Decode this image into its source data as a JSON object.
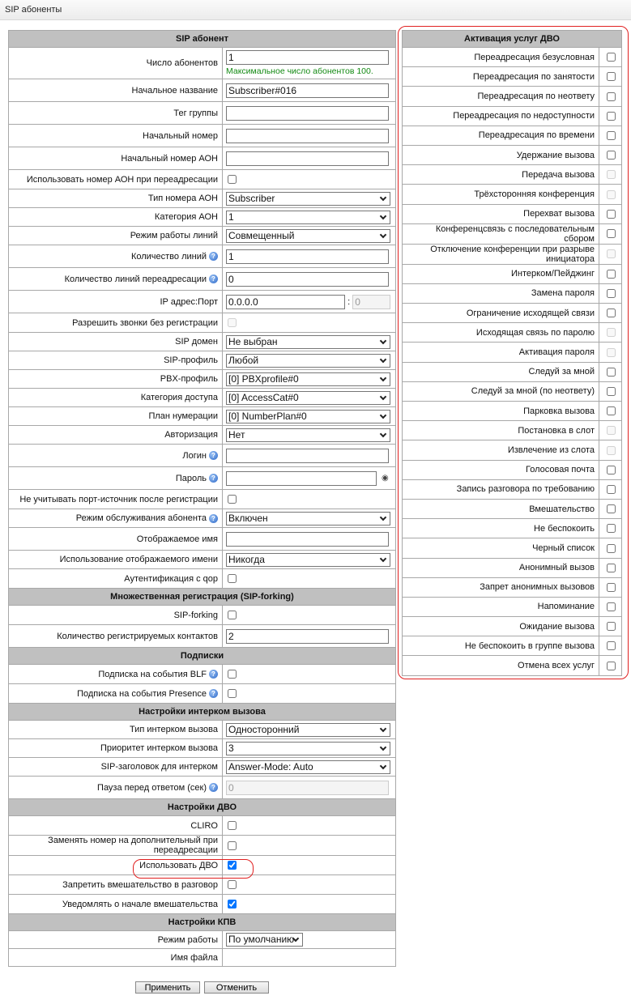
{
  "page_title": "SIP абоненты",
  "left": {
    "rows": [
      {
        "type": "header",
        "label": "SIP абонент"
      },
      {
        "type": "textnote",
        "label": "Число абонентов",
        "value": "1",
        "note": "Максимальное число абонентов 100.",
        "h": 39
      },
      {
        "type": "text",
        "label": "Начальное название",
        "value": "Subscriber#016"
      },
      {
        "type": "text",
        "label": "Тег группы",
        "value": ""
      },
      {
        "type": "text",
        "label": "Начальный номер",
        "value": ""
      },
      {
        "type": "text",
        "label": "Начальный номер АОН",
        "value": ""
      },
      {
        "type": "checkbox",
        "label": "Использовать номер АОН при переадресации",
        "checked": false
      },
      {
        "type": "select",
        "label": "Тип номера АОН",
        "value": "Subscriber"
      },
      {
        "type": "select",
        "label": "Категория АОН",
        "value": "1"
      },
      {
        "type": "select",
        "label": "Режим работы линий",
        "value": "Совмещенный"
      },
      {
        "type": "text",
        "label": "Количество линий",
        "value": "1",
        "help": true
      },
      {
        "type": "text",
        "label": "Количество линий переадресации",
        "value": "0",
        "help": true
      },
      {
        "type": "ipport",
        "label": "IP адрес:Порт",
        "value": "0.0.0.0",
        "port": "0"
      },
      {
        "type": "checkbox",
        "label": "Разрешить звонки без регистрации",
        "checked": false,
        "disabled": true
      },
      {
        "type": "select",
        "label": "SIP домен",
        "value": "Не выбран"
      },
      {
        "type": "select",
        "label": "SIP-профиль",
        "value": "Любой"
      },
      {
        "type": "select",
        "label": "PBX-профиль",
        "value": "[0] PBXprofile#0"
      },
      {
        "type": "select",
        "label": "Категория доступа",
        "value": "[0] AccessCat#0"
      },
      {
        "type": "select",
        "label": "План нумерации",
        "value": "[0] NumberPlan#0"
      },
      {
        "type": "select",
        "label": "Авторизация",
        "value": "Нет"
      },
      {
        "type": "text",
        "label": "Логин",
        "value": "",
        "help": true
      },
      {
        "type": "password",
        "label": "Пароль",
        "value": "",
        "help": true
      },
      {
        "type": "checkbox",
        "label": "Не учитывать порт-источник после регистрации",
        "checked": false
      },
      {
        "type": "select",
        "label": "Режим обслуживания абонента",
        "value": "Включен",
        "help": true
      },
      {
        "type": "text",
        "label": "Отображаемое имя",
        "value": ""
      },
      {
        "type": "select",
        "label": "Использование отображаемого имени",
        "value": "Никогда"
      },
      {
        "type": "checkbox",
        "label": "Аутентификация с qop",
        "checked": false
      },
      {
        "type": "header",
        "label": "Множественная регистрация (SIP-forking)"
      },
      {
        "type": "checkbox",
        "label": "SIP-forking",
        "checked": false
      },
      {
        "type": "text",
        "label": "Количество регистрируемых контактов",
        "value": "2"
      },
      {
        "type": "header",
        "label": "Подписки"
      },
      {
        "type": "checkbox",
        "label": "Подписка на события BLF",
        "checked": false,
        "help": true
      },
      {
        "type": "checkbox",
        "label": "Подписка на события Presence",
        "checked": false,
        "help": true
      },
      {
        "type": "header",
        "label": "Настройки интерком вызова"
      },
      {
        "type": "select",
        "label": "Тип интерком вызова",
        "value": "Односторонний"
      },
      {
        "type": "select",
        "label": "Приоритет интерком вызова",
        "value": "3"
      },
      {
        "type": "select",
        "label": "SIP-заголовок для интерком",
        "value": "Answer-Mode: Auto"
      },
      {
        "type": "text",
        "label": "Пауза перед ответом (сек)",
        "value": "",
        "placeholder": "0",
        "disabled": true,
        "help": true
      },
      {
        "type": "header",
        "label": "Настройки ДВО"
      },
      {
        "type": "checkbox",
        "label": "CLIRO",
        "checked": false
      },
      {
        "type": "checkbox",
        "label": "Заменять номер на дополнительный при переадресации",
        "checked": false
      },
      {
        "type": "checkbox",
        "label": "Использовать ДВО",
        "checked": true,
        "highlight": true
      },
      {
        "type": "checkbox",
        "label": "Запретить вмешательство в разговор",
        "checked": false
      },
      {
        "type": "checkbox",
        "label": "Уведомлять о начале вмешательства",
        "checked": true
      },
      {
        "type": "header",
        "label": "Настройки КПВ"
      },
      {
        "type": "smallselect",
        "label": "Режим работы",
        "value": "По умолчанию"
      },
      {
        "type": "static",
        "label": "Имя файла",
        "value": ""
      }
    ]
  },
  "right": {
    "title": "Активация услуг ДВО",
    "items": [
      {
        "label": "Переадресация безусловная",
        "checked": false
      },
      {
        "label": "Переадресация по занятости",
        "checked": false
      },
      {
        "label": "Переадресация по неответу",
        "checked": false
      },
      {
        "label": "Переадресация по недоступности",
        "checked": false
      },
      {
        "label": "Переадресация по времени",
        "checked": false
      },
      {
        "label": "Удержание вызова",
        "checked": false
      },
      {
        "label": "Передача вызова",
        "checked": false,
        "disabled": true
      },
      {
        "label": "Трёхсторонняя конференция",
        "checked": false,
        "disabled": true
      },
      {
        "label": "Перехват вызова",
        "checked": false
      },
      {
        "label": "Конференцсвязь с последовательным сбором",
        "checked": false
      },
      {
        "label": "Отключение конференции при разрыве инициатора",
        "checked": false,
        "disabled": true
      },
      {
        "label": "Интерком/Пейджинг",
        "checked": false
      },
      {
        "label": "Замена пароля",
        "checked": false
      },
      {
        "label": "Ограничение исходящей связи",
        "checked": false
      },
      {
        "label": "Исходящая связь по паролю",
        "checked": false,
        "disabled": true
      },
      {
        "label": "Активация пароля",
        "checked": false,
        "disabled": true
      },
      {
        "label": "Следуй за мной",
        "checked": false
      },
      {
        "label": "Следуй за мной (по неответу)",
        "checked": false
      },
      {
        "label": "Парковка вызова",
        "checked": false
      },
      {
        "label": "Постановка в слот",
        "checked": false,
        "disabled": true
      },
      {
        "label": "Извлечение из слота",
        "checked": false,
        "disabled": true
      },
      {
        "label": "Голосовая почта",
        "checked": false
      },
      {
        "label": "Запись разговора по требованию",
        "checked": false
      },
      {
        "label": "Вмешательство",
        "checked": false
      },
      {
        "label": "Не беспокоить",
        "checked": false
      },
      {
        "label": "Черный список",
        "checked": false
      },
      {
        "label": "Анонимный вызов",
        "checked": false
      },
      {
        "label": "Запрет анонимных вызовов",
        "checked": false
      },
      {
        "label": "Напоминание",
        "checked": false
      },
      {
        "label": "Ожидание вызова",
        "checked": false
      },
      {
        "label": "Не беспокоить в группе вызова",
        "checked": false
      },
      {
        "label": "Отмена всех услуг",
        "checked": false
      }
    ]
  },
  "buttons": {
    "apply": "Применить",
    "cancel": "Отменить"
  },
  "colors": {
    "highlight": "#e02020",
    "header_bg": "#c0c0c0",
    "note": "#138a13"
  }
}
